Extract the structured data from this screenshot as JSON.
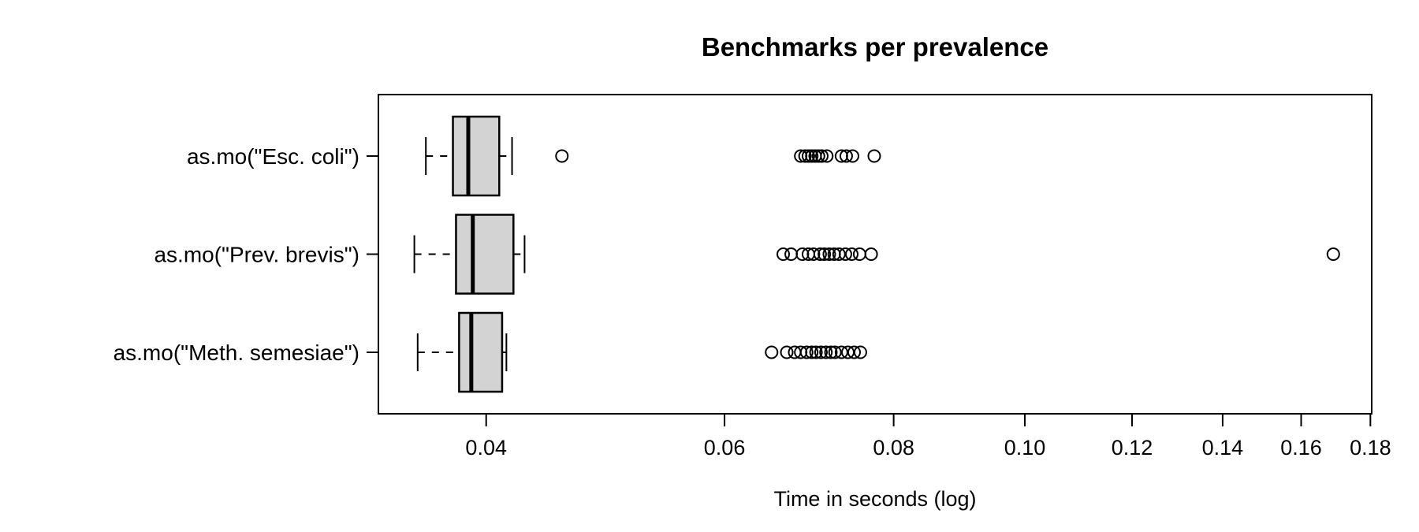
{
  "figure": {
    "title": "Benchmarks per prevalence",
    "x_axis_label": "Time in seconds (log)"
  },
  "chart_data": {
    "type": "boxplot",
    "orientation": "horizontal",
    "title": "Benchmarks per prevalence",
    "xlabel": "Time in seconds (log)",
    "ylabel": "",
    "x_scale": "log",
    "xlim": [
      0.0333,
      0.1804
    ],
    "x_ticks": [
      0.04,
      0.06,
      0.08,
      0.1,
      0.12,
      0.14,
      0.16,
      0.18
    ],
    "x_tick_labels": [
      "0.04",
      "0.06",
      "0.08",
      "0.10",
      "0.12",
      "0.14",
      "0.16",
      "0.18"
    ],
    "grid": false,
    "legend": "none",
    "box_fill_color": "#d3d3d3",
    "stroke_color": "#000000",
    "categories": [
      "as.mo(\"Esc. coli\")",
      "as.mo(\"Prev. brevis\")",
      "as.mo(\"Meth. semesiae\")"
    ],
    "series": [
      {
        "name": "as.mo(\"Esc. coli\")",
        "whisker_low": 0.0361,
        "q1": 0.0378,
        "median": 0.0388,
        "q3": 0.0409,
        "whisker_high": 0.0418,
        "outliers": [
          0.0455,
          0.0683,
          0.0688,
          0.0692,
          0.0696,
          0.07,
          0.0704,
          0.0708,
          0.0714,
          0.0732,
          0.0738,
          0.0746,
          0.0774
        ]
      },
      {
        "name": "as.mo(\"Prev. brevis\")",
        "whisker_low": 0.0354,
        "q1": 0.038,
        "median": 0.0391,
        "q3": 0.0419,
        "whisker_high": 0.0427,
        "outliers": [
          0.0663,
          0.0672,
          0.0685,
          0.0692,
          0.0698,
          0.0706,
          0.0711,
          0.0717,
          0.0723,
          0.0729,
          0.0737,
          0.0745,
          0.0755,
          0.077,
          0.169
        ]
      },
      {
        "name": "as.mo(\"Meth. semesiae\")",
        "whisker_low": 0.0356,
        "q1": 0.0382,
        "median": 0.039,
        "q3": 0.0411,
        "whisker_high": 0.0414,
        "outliers": [
          0.065,
          0.0667,
          0.0676,
          0.0683,
          0.069,
          0.0696,
          0.0701,
          0.0707,
          0.0713,
          0.0719,
          0.0724,
          0.0732,
          0.074,
          0.0748,
          0.0756
        ]
      }
    ]
  }
}
